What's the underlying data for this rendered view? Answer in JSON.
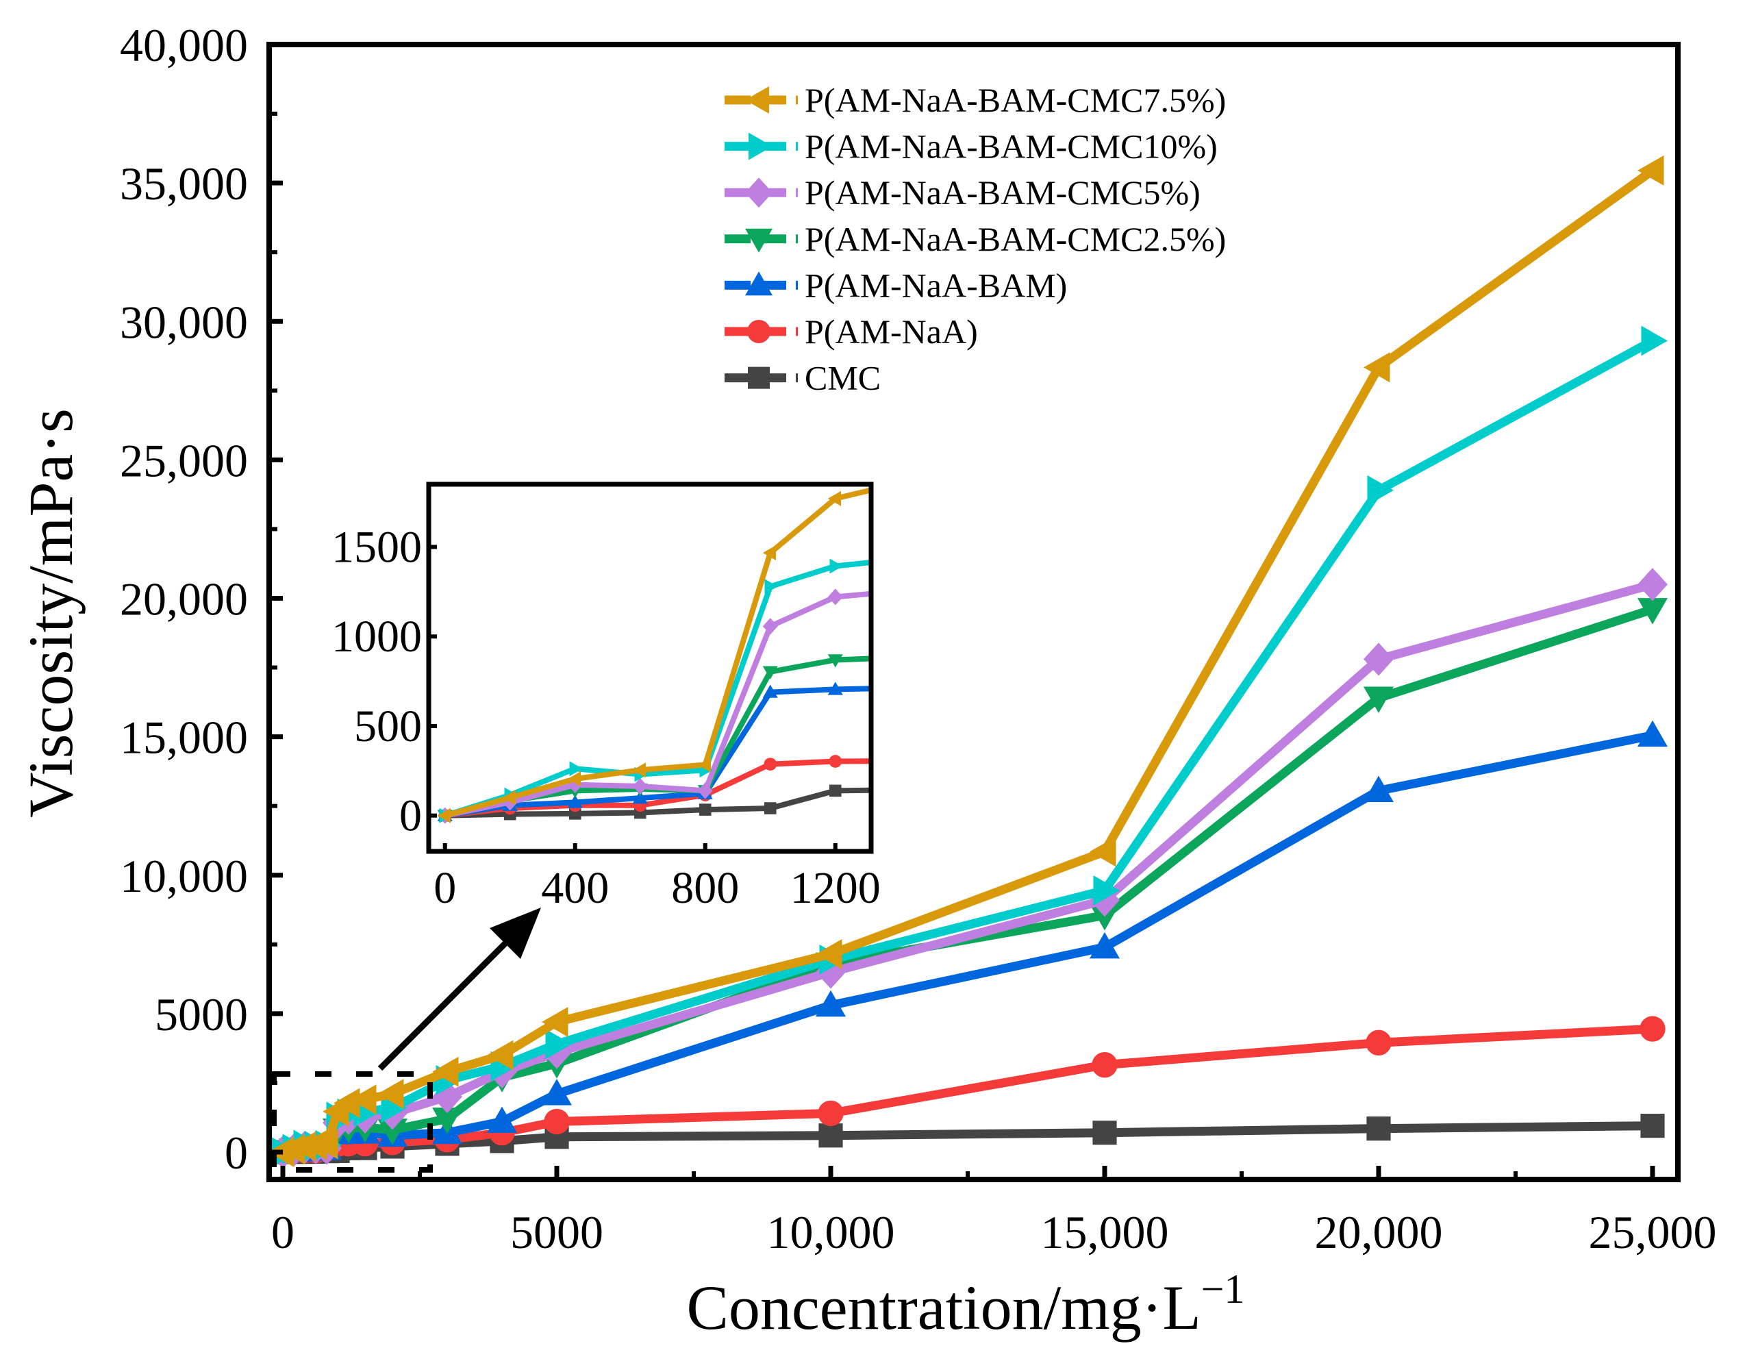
{
  "chart_data": {
    "type": "line",
    "xlabel": "Concentration/mg·L",
    "xlabel_sup": "−1",
    "ylabel": "Viscosity/mPa·s",
    "xlim": [
      -200,
      25500
    ],
    "ylim": [
      -1000,
      40000
    ],
    "xticks": [
      0,
      5000,
      10000,
      15000,
      20000,
      25000
    ],
    "xtick_labels": [
      "0",
      "5000",
      "10,000",
      "15,000",
      "20,000",
      "25,000"
    ],
    "yticks": [
      0,
      5000,
      10000,
      15000,
      20000,
      25000,
      30000,
      35000,
      40000
    ],
    "ytick_labels": [
      "0",
      "5000",
      "10,000",
      "15,000",
      "20,000",
      "25,000",
      "30,000",
      "35,000",
      "40,000"
    ],
    "legend_position": "top-center",
    "x": [
      0,
      200,
      400,
      600,
      800,
      1000,
      1200,
      1500,
      2000,
      3000,
      4000,
      5000,
      10000,
      15000,
      20000,
      25000
    ],
    "series": [
      {
        "name": "P(AM-NaA-BAM-CMC7.5%)",
        "color": "#D89A0B",
        "marker": "triangle-left",
        "values": [
          0,
          100,
          205,
          254,
          284,
          1467,
          1770,
          1900,
          2100,
          2900,
          3500,
          4700,
          7150,
          10850,
          28340,
          35450
        ]
      },
      {
        "name": "P(AM-NaA-BAM-CMC10%)",
        "color": "#00CCCC",
        "marker": "triangle-right",
        "values": [
          0,
          115,
          262,
          230,
          254,
          1279,
          1393,
          1450,
          1600,
          2600,
          3100,
          3900,
          6950,
          9450,
          23900,
          29300
        ]
      },
      {
        "name": "P(AM-NaA-BAM-CMC5%)",
        "color": "#BF7FE0",
        "marker": "diamond",
        "values": [
          0,
          74,
          172,
          164,
          139,
          1057,
          1221,
          1270,
          1400,
          2000,
          2900,
          3600,
          6500,
          9100,
          17800,
          20500
        ]
      },
      {
        "name": "P(AM-NaA-BAM-CMC2.5%)",
        "color": "#0BA55C",
        "marker": "triangle-down",
        "values": [
          0,
          82,
          139,
          148,
          139,
          803,
          869,
          890,
          800,
          1200,
          2700,
          3200,
          6800,
          8550,
          16400,
          19600
        ]
      },
      {
        "name": "P(AM-NaA-BAM)",
        "color": "#0066DD",
        "marker": "triangle-up",
        "values": [
          0,
          57,
          74,
          98,
          123,
          689,
          705,
          715,
          600,
          700,
          1100,
          2100,
          5300,
          7400,
          13050,
          15050
        ]
      },
      {
        "name": "P(AM-NaA)",
        "color": "#F53A3A",
        "marker": "circle",
        "values": [
          0,
          41,
          57,
          57,
          115,
          287,
          303,
          305,
          350,
          450,
          700,
          1100,
          1400,
          3150,
          3950,
          4450
        ]
      },
      {
        "name": "CMC",
        "color": "#444444",
        "marker": "square",
        "values": [
          0,
          8,
          11,
          16,
          33,
          41,
          139,
          145,
          200,
          300,
          400,
          550,
          600,
          700,
          850,
          950
        ]
      }
    ],
    "inset": {
      "xlim": [
        -50,
        1310
      ],
      "ylim": [
        -200,
        1850
      ],
      "xticks": [
        0,
        400,
        800,
        1200
      ],
      "xtick_labels": [
        "0",
        "400",
        "800",
        "1200"
      ],
      "yticks": [
        0,
        500,
        1000,
        1500
      ],
      "ytick_labels": [
        "0",
        "500",
        "1000",
        "1500"
      ]
    }
  }
}
